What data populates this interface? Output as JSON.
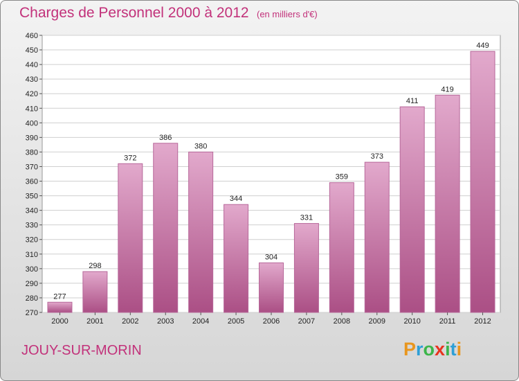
{
  "title": "Charges de Personnel 2000 à 2012",
  "subtitle": "(en milliers d'€)",
  "commune": "JOUY-SUR-MORIN",
  "logo": {
    "letters": [
      "P",
      "r",
      "o",
      "x",
      "i",
      "t",
      "i"
    ],
    "colors": [
      "#e8961e",
      "#2e9fd6",
      "#3cb54a",
      "#e8341e",
      "#3cb54a",
      "#2e9fd6",
      "#e8961e"
    ]
  },
  "colors": {
    "title": "#c2317a",
    "bar": "#c96fa2",
    "bar_light": "#e2a9cc",
    "bar_dark": "#ab4f85"
  },
  "chart_data": {
    "type": "bar",
    "categories": [
      "2000",
      "2001",
      "2002",
      "2003",
      "2004",
      "2005",
      "2006",
      "2007",
      "2008",
      "2009",
      "2010",
      "2011",
      "2012"
    ],
    "values": [
      277,
      298,
      372,
      386,
      380,
      344,
      304,
      331,
      359,
      373,
      411,
      419,
      449
    ],
    "title": "Charges de Personnel 2000 à 2012",
    "xlabel": "",
    "ylabel": "",
    "ylim": [
      270,
      460
    ],
    "ytick_step": 10,
    "grid": true,
    "data_labels": true
  }
}
